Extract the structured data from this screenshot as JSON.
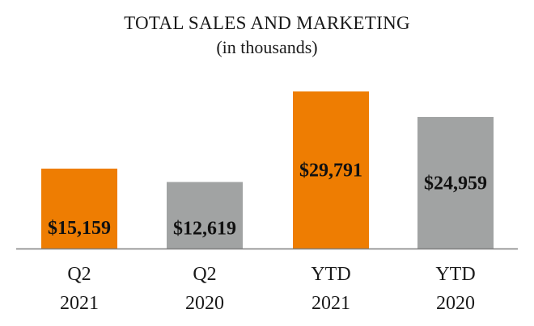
{
  "chart_data": {
    "type": "bar",
    "title": "TOTAL SALES AND MARKETING",
    "subtitle": "(in thousands)",
    "xlabel": "",
    "ylabel": "",
    "ylim": [
      0,
      30000
    ],
    "grid": false,
    "categories": [
      {
        "line1": "Q2",
        "line2": "2021"
      },
      {
        "line1": "Q2",
        "line2": "2020"
      },
      {
        "line1": "YTD",
        "line2": "2021"
      },
      {
        "line1": "YTD",
        "line2": "2020"
      }
    ],
    "values": [
      15159,
      12619,
      29791,
      24959
    ],
    "value_labels": [
      "$15,159",
      "$12,619",
      "$29,791",
      "$24,959"
    ],
    "colors": [
      "#ee7d02",
      "#a1a3a3",
      "#ee7d02",
      "#a1a3a3"
    ],
    "axis_color": "#7f7f7f"
  }
}
